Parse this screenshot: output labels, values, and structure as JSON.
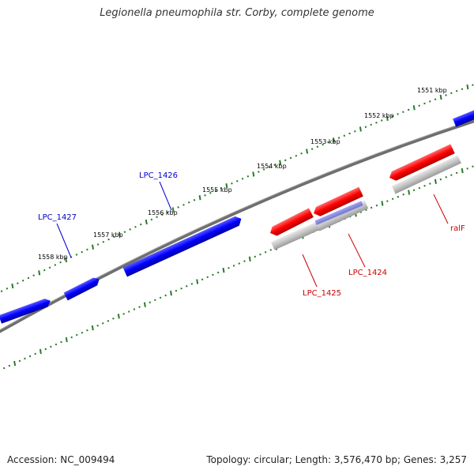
{
  "title": "Legionella pneumophila str. Corby, complete genome",
  "footer": {
    "accession": "Accession: NC_009494",
    "summary": "Topology: circular; Length: 3,576,470 bp; Genes: 3,257"
  },
  "colors": {
    "forward_gene": "#0000ff",
    "reverse_gene": "#ff0000",
    "gene_shadow": "#c0c0c0",
    "backbone": "#707070",
    "tick": "#2a7a2a",
    "forward_label": "#0000cc",
    "reverse_label": "#cc0000"
  },
  "scale_labels": [
    "1551 kbp",
    "1552 kbp",
    "1553 kbp",
    "1554 kbp",
    "1555 kbp",
    "1556 kbp",
    "1557 kbp",
    "1558 kbp"
  ],
  "gene_labels": {
    "forward": [
      "LPC_1426",
      "LPC_1427"
    ],
    "reverse": [
      "LPC_1424",
      "LPC_1425",
      "ralF"
    ]
  }
}
